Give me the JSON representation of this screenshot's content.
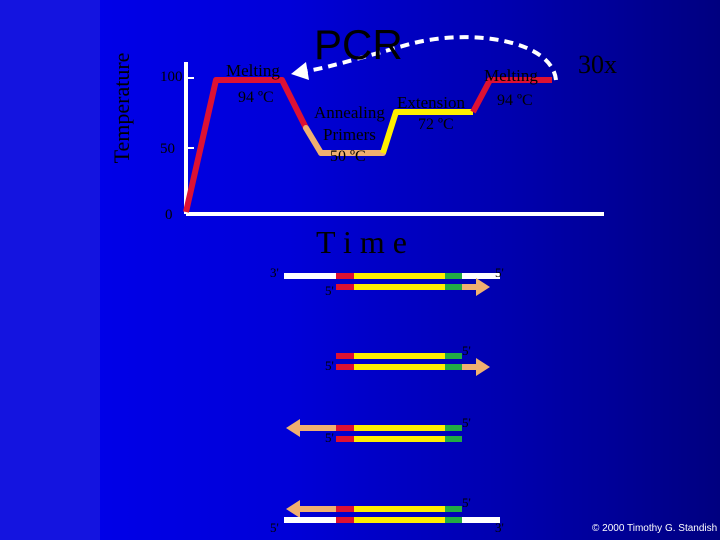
{
  "title": "PCR",
  "cycles": "30x",
  "axes": {
    "y_label": "Temperature",
    "y_ticks": [
      "100",
      "50",
      "0"
    ],
    "x_label": "T i m e"
  },
  "steps": {
    "melting1_label": "Melting",
    "melting1_temp": "94 ºC",
    "annealing_label": "Annealing",
    "primers_label": "Primers",
    "annealing_temp": "50 ºC",
    "extension_label": "Extension",
    "extension_temp": "72 ºC",
    "melting2_label": "Melting",
    "melting2_temp": "94 ºC"
  },
  "strand_labels": {
    "r1_left": "3'",
    "r1_right": "5'",
    "r1_primer": "5'",
    "r2_top": "5'",
    "r2_bottom": "5'",
    "r3_top": "5'",
    "r3_bottom": "5'",
    "r4_top": "5'",
    "r4_left": "5'",
    "r4_right": "3'"
  },
  "copyright": "© 2000 Timothy G. Standish",
  "colors": {
    "background": "#0000d0",
    "melting": "#dd1133",
    "annealing": "#f0b070",
    "extension": "#ffee00",
    "axis": "#ffffff",
    "strand": "#ffffff",
    "primer": "#dd1133",
    "template": "#ffee00",
    "green_marker": "#22aa44",
    "arrow": "#f0b070",
    "cycle_arrow": "#ffffff"
  }
}
